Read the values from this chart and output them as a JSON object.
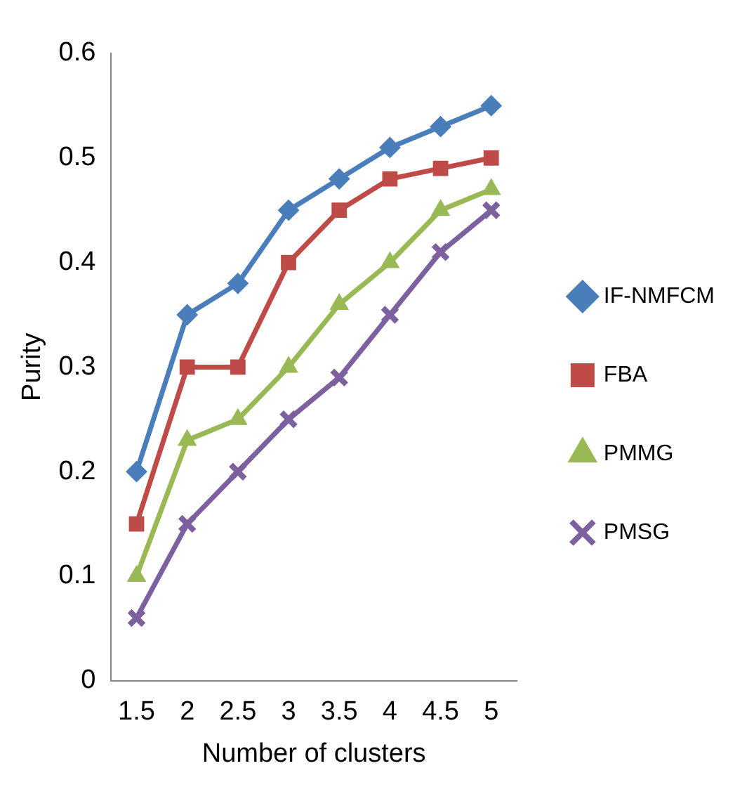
{
  "chart_data": {
    "type": "line",
    "xlabel": "Number of clusters",
    "ylabel": "Purity",
    "categories": [
      "1.5",
      "2",
      "2.5",
      "3",
      "3.5",
      "4",
      "4.5",
      "5"
    ],
    "series": [
      {
        "name": "IF-NMFCM",
        "color": "#4a7ebb",
        "marker": "diamond",
        "values": [
          0.2,
          0.35,
          0.38,
          0.45,
          0.48,
          0.51,
          0.53,
          0.55
        ]
      },
      {
        "name": "FBA",
        "color": "#be4b48",
        "marker": "square",
        "values": [
          0.15,
          0.3,
          0.3,
          0.4,
          0.45,
          0.48,
          0.49,
          0.5
        ]
      },
      {
        "name": "PMMG",
        "color": "#98b954",
        "marker": "triangle",
        "values": [
          0.1,
          0.23,
          0.25,
          0.3,
          0.36,
          0.4,
          0.45,
          0.47
        ]
      },
      {
        "name": "PMSG",
        "color": "#7d60a0",
        "marker": "cross",
        "values": [
          0.06,
          0.15,
          0.2,
          0.25,
          0.29,
          0.35,
          0.41,
          0.45
        ]
      }
    ],
    "ylim": [
      0,
      0.6
    ],
    "yticks": [
      0,
      0.1,
      0.2,
      0.3,
      0.4,
      0.5,
      0.6
    ],
    "grid": false,
    "legend": "right",
    "line_style": "solid"
  }
}
